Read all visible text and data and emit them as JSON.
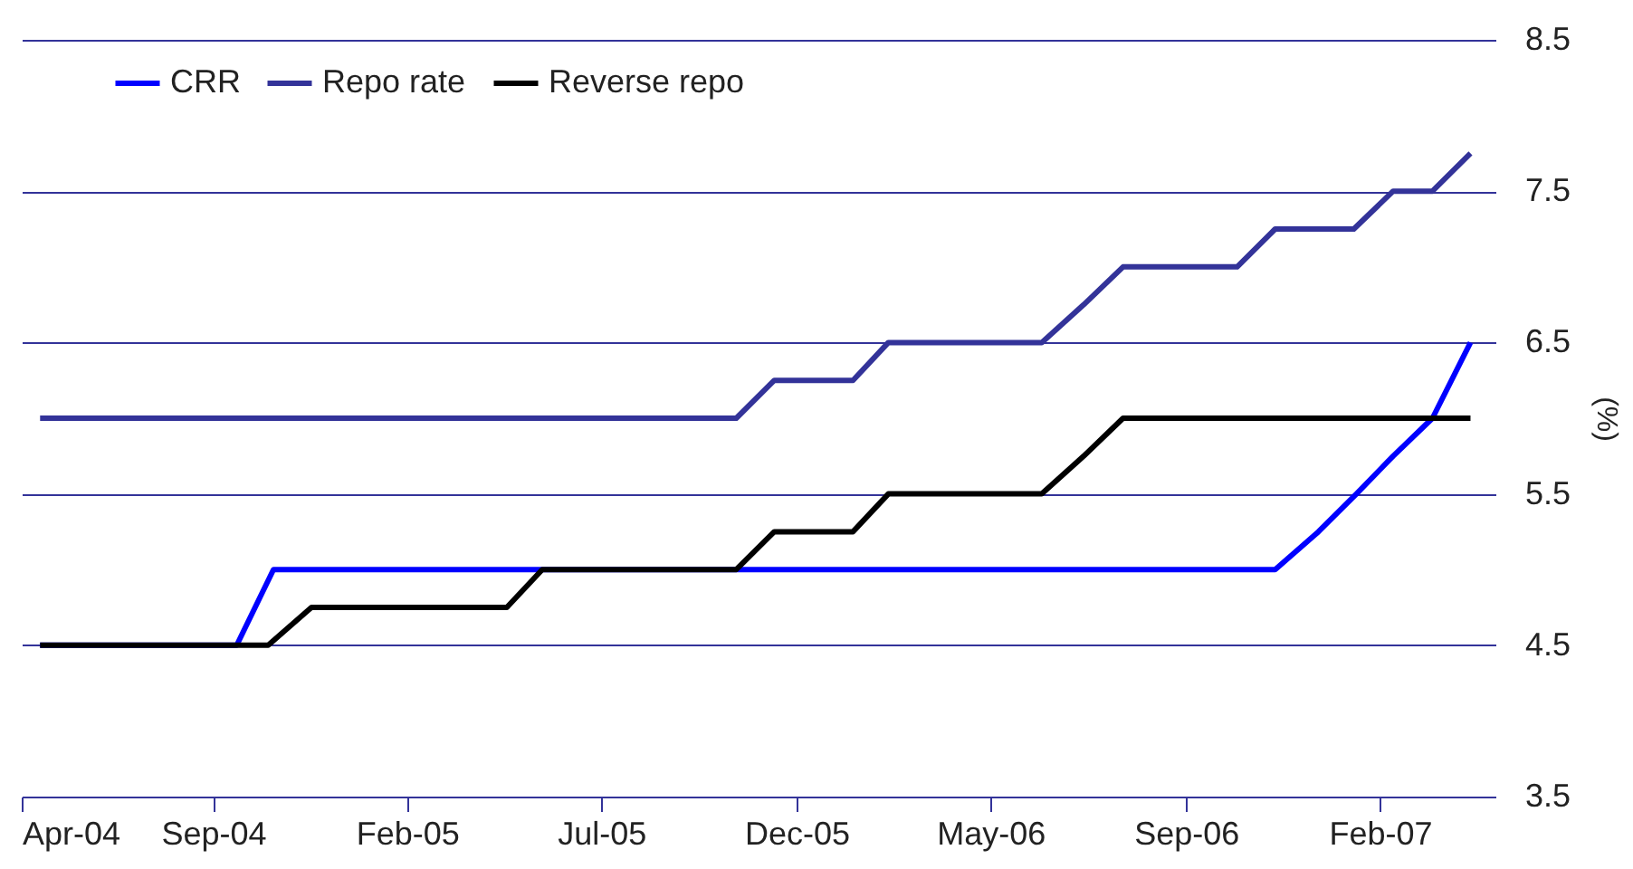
{
  "chart_data": {
    "type": "line",
    "ylabel": "(%)",
    "legend": "top left",
    "grid": "y",
    "line_style": "solid",
    "marker": "none",
    "xlim": [
      "2004-04-24",
      "2007-05-23"
    ],
    "xticks": [
      {
        "value": "2004-04-24",
        "label": "Apr-04"
      },
      {
        "value": "2004-09-17",
        "label": "Sep-04"
      },
      {
        "value": "2005-02-12",
        "label": "Feb-05"
      },
      {
        "value": "2005-07-10",
        "label": "Jul-05"
      },
      {
        "value": "2005-12-06",
        "label": "Dec-05"
      },
      {
        "value": "2006-05-03",
        "label": "May-06"
      },
      {
        "value": "2006-09-29",
        "label": "Sep-06"
      },
      {
        "value": "2007-02-24",
        "label": "Feb-07"
      }
    ],
    "ylim": [
      3.5,
      8.5
    ],
    "yticks": [
      3.5,
      4.5,
      5.5,
      6.5,
      7.5,
      8.5
    ],
    "series": [
      {
        "name": "CRR",
        "color": "#0000ff",
        "x": [
          "2004-05-08",
          "2004-10-05",
          "2004-11-02",
          "2006-12-06",
          "2007-01-08",
          "2007-02-06",
          "2007-03-06",
          "2007-04-05",
          "2007-05-04"
        ],
        "values": [
          4.5,
          4.5,
          5.0,
          5.0,
          5.25,
          5.5,
          5.75,
          6.0,
          6.5
        ]
      },
      {
        "name": "Repo rate",
        "color": "#333399",
        "x": [
          "2004-05-08",
          "2005-10-21",
          "2005-11-19",
          "2006-01-18",
          "2006-02-14",
          "2006-06-11",
          "2006-07-13",
          "2006-08-12",
          "2006-11-07",
          "2006-12-06",
          "2007-02-04",
          "2007-03-06",
          "2007-04-05",
          "2007-05-04"
        ],
        "values": [
          6.0,
          6.0,
          6.25,
          6.25,
          6.5,
          6.5,
          6.75,
          7.0,
          7.0,
          7.25,
          7.25,
          7.5,
          7.5,
          7.75
        ]
      },
      {
        "name": "Reverse repo",
        "color": "#000000",
        "x": [
          "2004-05-08",
          "2004-10-29",
          "2004-12-01",
          "2005-04-29",
          "2005-05-26",
          "2005-10-21",
          "2005-11-19",
          "2006-01-18",
          "2006-02-14",
          "2006-06-11",
          "2006-07-13",
          "2006-08-12",
          "2007-05-04"
        ],
        "values": [
          4.5,
          4.5,
          4.75,
          4.75,
          5.0,
          5.0,
          5.25,
          5.25,
          5.5,
          5.5,
          5.75,
          6.0,
          6.0
        ]
      }
    ]
  }
}
